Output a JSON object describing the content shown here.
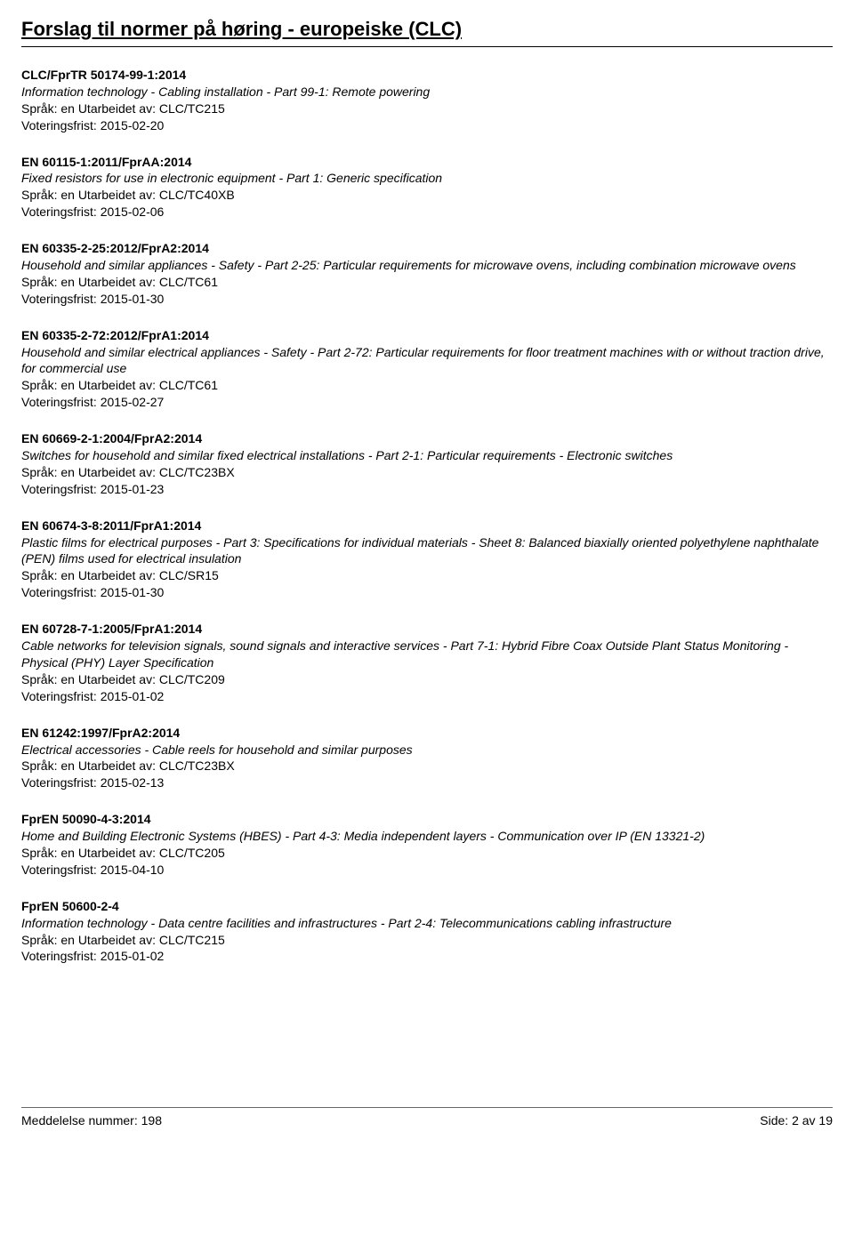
{
  "title": "Forslag til normer på høring - europeiske (CLC)",
  "labels": {
    "lang_prefix": "Språk:",
    "author_prefix": "Utarbeidet av:",
    "vote_prefix": "Voteringsfrist:"
  },
  "entries": [
    {
      "code": "CLC/FprTR 50174-99-1:2014",
      "desc": "Information technology - Cabling installation - Part 99-1: Remote powering",
      "lang": "en",
      "author": "CLC/TC215",
      "vote": "2015-02-20"
    },
    {
      "code": "EN 60115-1:2011/FprAA:2014",
      "desc": "Fixed resistors for use in electronic equipment - Part 1: Generic specification",
      "lang": "en",
      "author": "CLC/TC40XB",
      "vote": "2015-02-06"
    },
    {
      "code": "EN 60335-2-25:2012/FprA2:2014",
      "desc": "Household and similar appliances - Safety - Part 2-25: Particular requirements for microwave ovens, including combination microwave ovens",
      "lang": "en",
      "author": "CLC/TC61",
      "vote": "2015-01-30"
    },
    {
      "code": "EN 60335-2-72:2012/FprA1:2014",
      "desc": "Household and similar electrical appliances - Safety - Part 2-72: Particular requirements for floor treatment machines with or without traction drive, for commercial use",
      "lang": "en",
      "author": "CLC/TC61",
      "vote": "2015-02-27"
    },
    {
      "code": "EN 60669-2-1:2004/FprA2:2014",
      "desc": "Switches for household and similar fixed electrical installations - Part 2-1: Particular requirements - Electronic switches",
      "lang": "en",
      "author": "CLC/TC23BX",
      "vote": "2015-01-23"
    },
    {
      "code": "EN 60674-3-8:2011/FprA1:2014",
      "desc": "Plastic films for electrical purposes - Part 3: Specifications for individual materials - Sheet 8: Balanced biaxially oriented polyethylene naphthalate (PEN) films used for electrical insulation",
      "lang": "en",
      "author": "CLC/SR15",
      "vote": "2015-01-30"
    },
    {
      "code": "EN 60728-7-1:2005/FprA1:2014",
      "desc": "Cable networks for television signals, sound signals and interactive services - Part 7-1: Hybrid Fibre Coax Outside Plant Status Monitoring - Physical (PHY) Layer Specification",
      "lang": "en",
      "author": "CLC/TC209",
      "vote": "2015-01-02"
    },
    {
      "code": "EN 61242:1997/FprA2:2014",
      "desc": "Electrical accessories - Cable reels for household and similar purposes",
      "lang": "en",
      "author": "CLC/TC23BX",
      "vote": "2015-02-13"
    },
    {
      "code": "FprEN 50090-4-3:2014",
      "desc": "Home and Building Electronic Systems (HBES) - Part 4-3: Media independent layers - Communication over IP (EN 13321-2)",
      "lang": "en",
      "author": "CLC/TC205",
      "vote": "2015-04-10"
    },
    {
      "code": "FprEN 50600-2-4",
      "desc": "Information technology - Data centre facilities and infrastructures - Part 2-4: Telecommunications cabling infrastructure",
      "lang": "en",
      "author": "CLC/TC215",
      "vote": "2015-01-02"
    }
  ],
  "footer": {
    "left_label": "Meddelelse nummer:",
    "left_value": "198",
    "right_label": "Side:",
    "right_value": "2 av 19"
  }
}
